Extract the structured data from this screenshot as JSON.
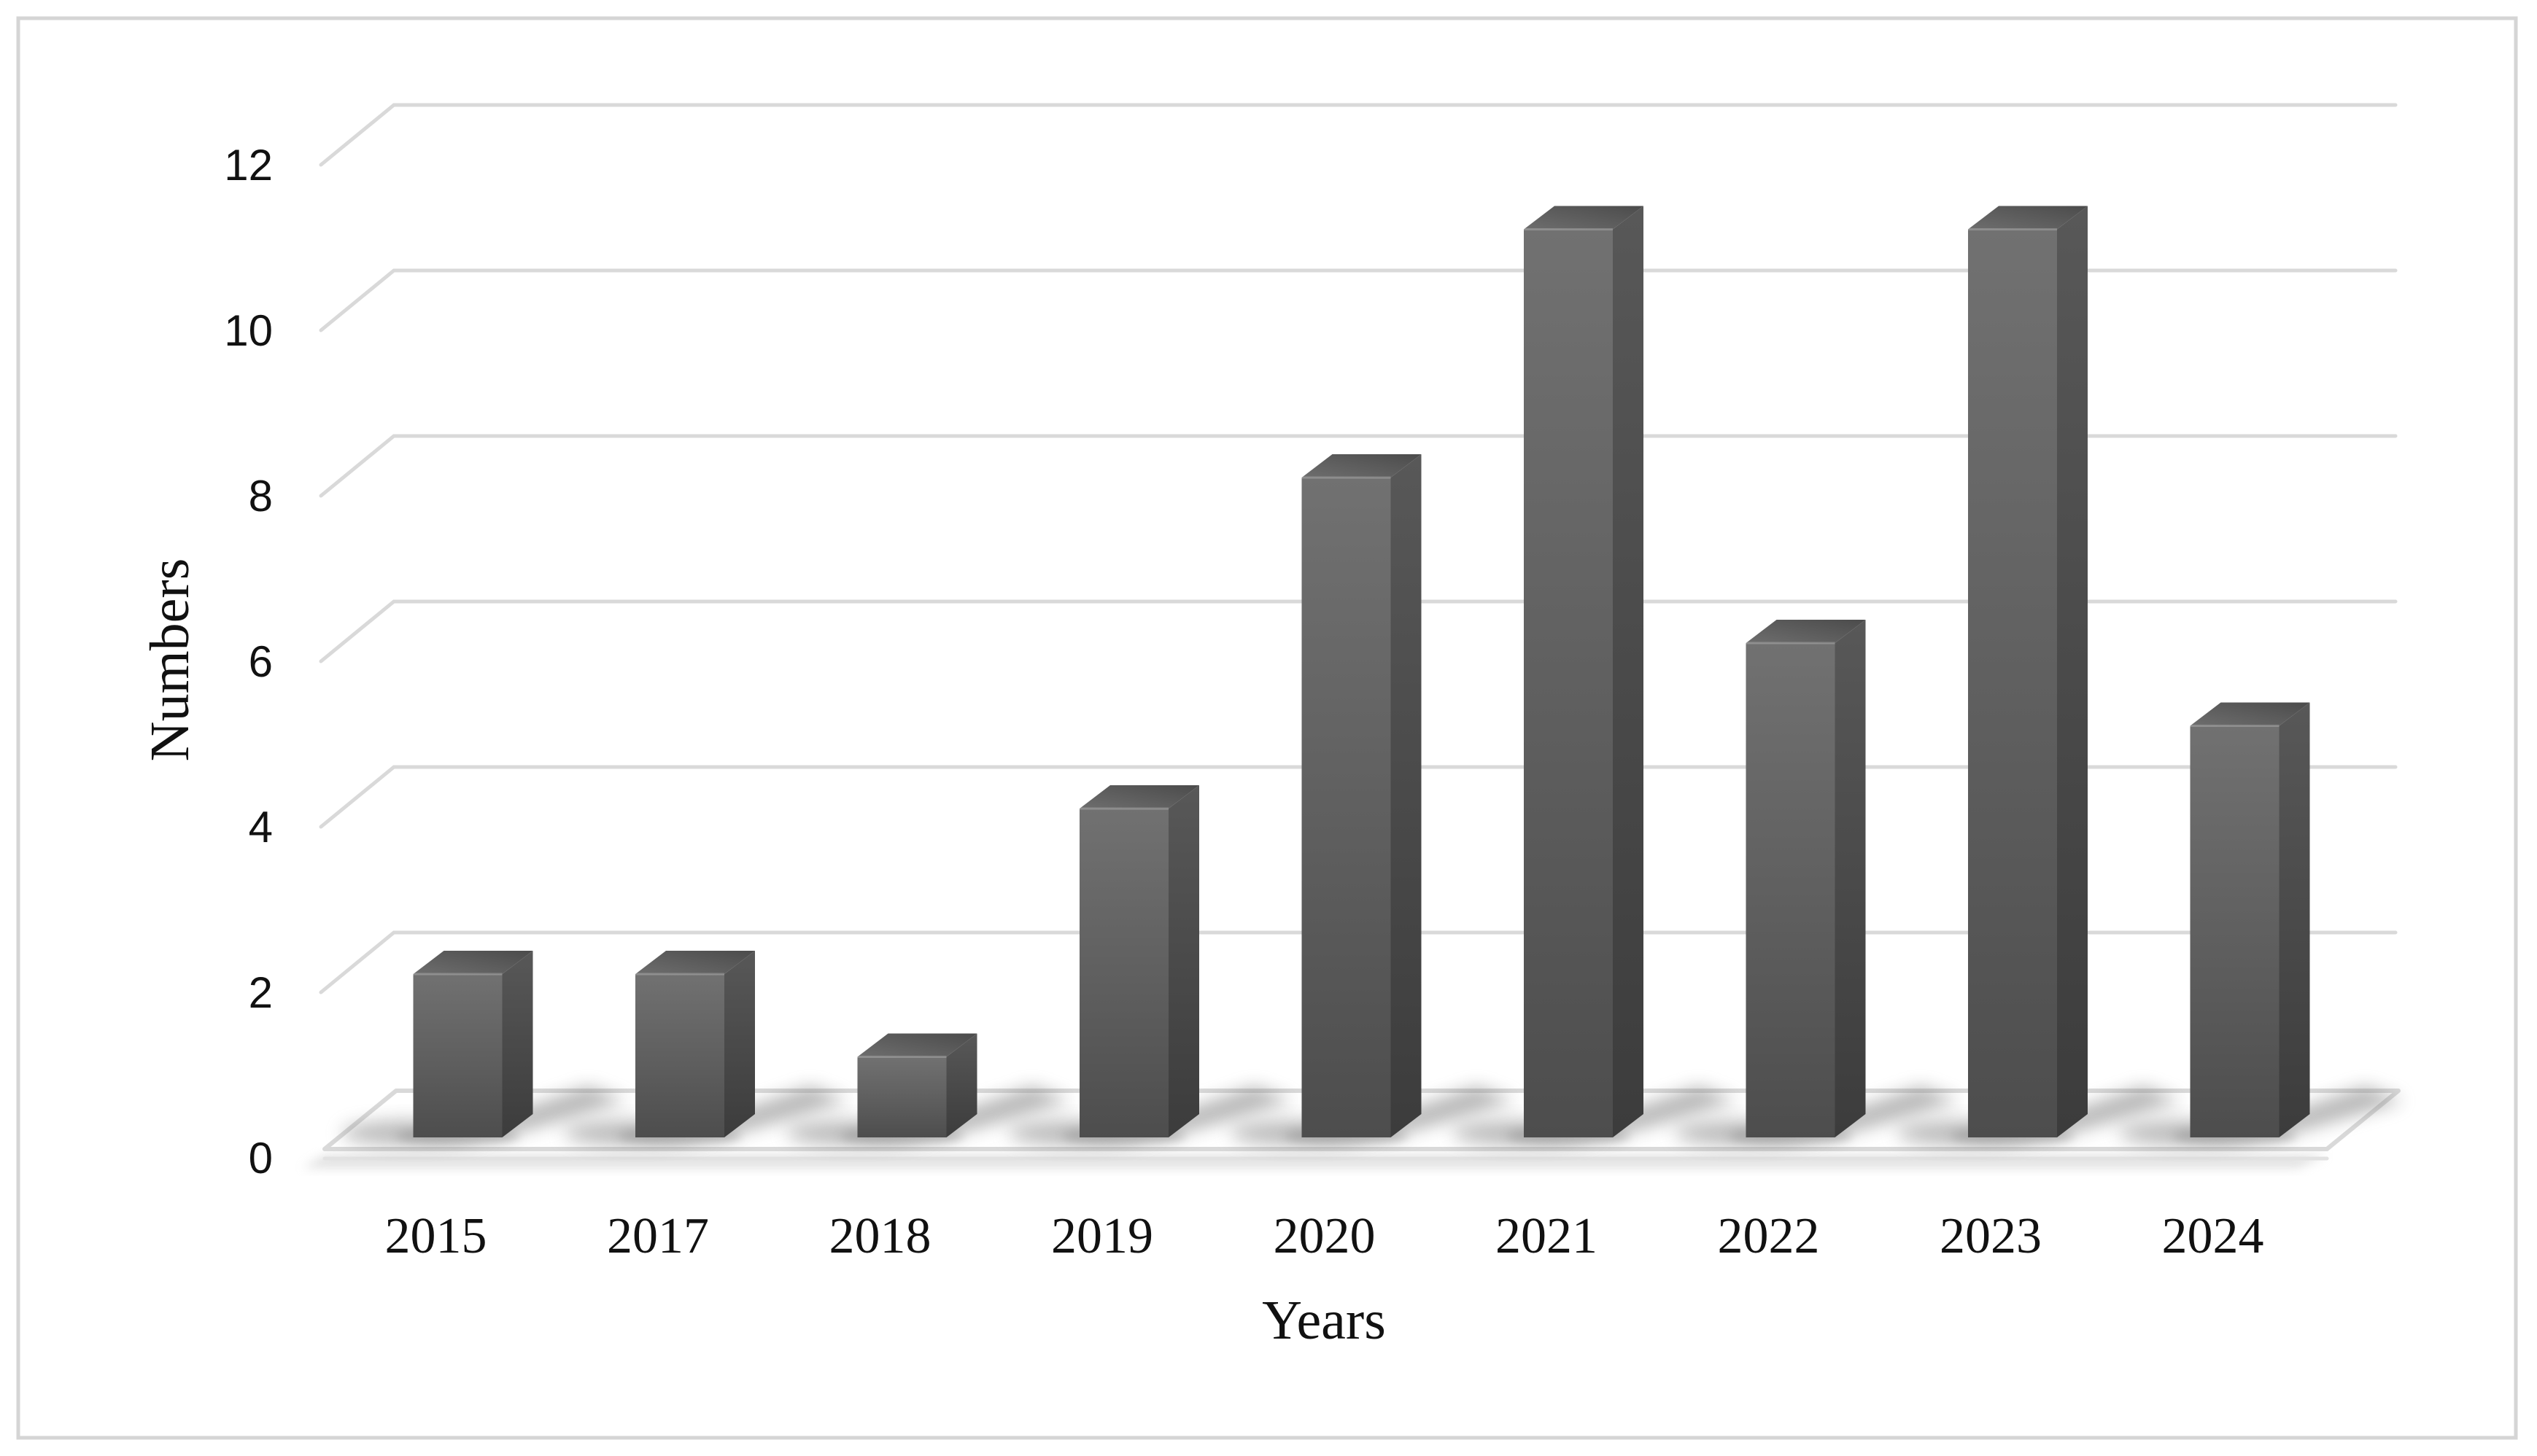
{
  "window": {
    "background": "#ffffff",
    "border_color": "#d5d5d5"
  },
  "chart_data": {
    "type": "bar",
    "variant": "3d-column-grayscale",
    "title": "",
    "categories": [
      "2015",
      "2017",
      "2018",
      "2019",
      "2020",
      "2021",
      "2022",
      "2023",
      "2024"
    ],
    "values": [
      2,
      2,
      1,
      4,
      8,
      11,
      6,
      11,
      5
    ],
    "xlabel": "Years",
    "ylabel": "Numbers",
    "ylim": [
      0,
      12
    ],
    "ytick_step": 2,
    "yticks": [
      0,
      2,
      4,
      6,
      8,
      10,
      12
    ],
    "grid": true,
    "legend": false,
    "colors": {
      "bar_front_top": "#717171",
      "bar_front_mid": "#5e5e5e",
      "bar_front_bottom": "#4d4d4d",
      "bar_side_top": "#585858",
      "bar_side_bottom": "#3c3c3c",
      "bar_top_front": "#6e6e6e",
      "bar_top_back": "#4b4b4b",
      "gridline": "#d9d9d9",
      "floor_stroke": "#d9d9d9",
      "floor_fill": "#ffffff",
      "shadow": "#7d7d7d",
      "text": "#111111"
    }
  }
}
